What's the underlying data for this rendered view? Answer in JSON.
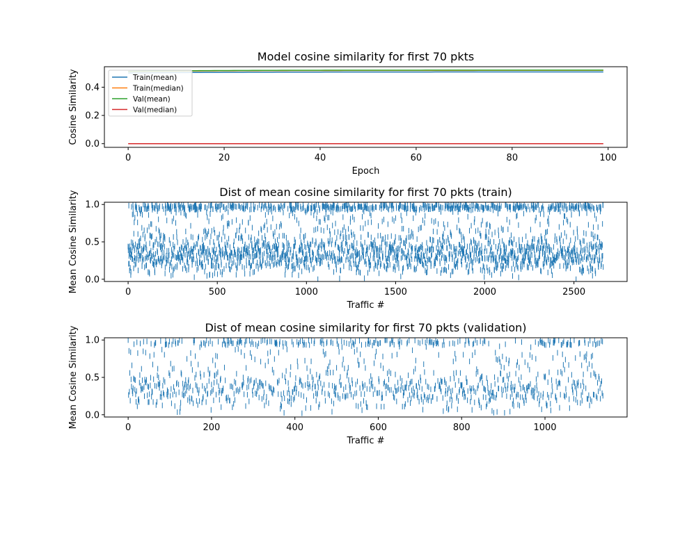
{
  "chart_data": [
    {
      "type": "line",
      "title": "Model cosine similarity for first 70 pkts",
      "xlabel": "Epoch",
      "ylabel": "Cosine Similarity",
      "xlim": [
        -4.95,
        103.95
      ],
      "ylim": [
        -0.026,
        0.545
      ],
      "xticks": [
        0,
        20,
        40,
        60,
        80,
        100
      ],
      "yticks": [
        0.0,
        0.2,
        0.4
      ],
      "ytick_labels": [
        "0.0",
        "0.2",
        "0.4"
      ],
      "legend_position": "upper-left",
      "epochs": {
        "start": 0,
        "end": 99
      },
      "series": [
        {
          "name": "Train(mean)",
          "color": "#1f77b4",
          "start": 0.5,
          "end": 0.508
        },
        {
          "name": "Train(median)",
          "color": "#ff7f0e",
          "start": 0.51,
          "end": 0.519
        },
        {
          "name": "Val(mean)",
          "color": "#2ca02c",
          "start": 0.512,
          "end": 0.521
        },
        {
          "name": "Val(median)",
          "color": "#d62728",
          "start": 0.0,
          "end": 0.0
        }
      ]
    },
    {
      "type": "scatter",
      "marker": "vertical-line",
      "title": "Dist of mean cosine similarity for first 70 pkts (train)",
      "xlabel": "Traffic #",
      "ylabel": "Mean Cosine Similarity",
      "n_points": 2665,
      "xlim": [
        -133,
        2798
      ],
      "ylim": [
        -0.03,
        1.03
      ],
      "xticks": [
        0,
        500,
        1000,
        1500,
        2000,
        2500
      ],
      "yticks": [
        0.0,
        0.5,
        1.0
      ],
      "ytick_labels": [
        "0.0",
        "0.5",
        "1.0"
      ],
      "color": "#1f77b4",
      "distribution": "dense band concentrated between roughly 0.15 and 0.55 with many values near 1.0"
    },
    {
      "type": "scatter",
      "marker": "vertical-line",
      "title": "Dist of mean cosine similarity for first 70 pkts (validation)",
      "xlabel": "Traffic #",
      "ylabel": "Mean Cosine Similarity",
      "n_points": 1140,
      "xlim": [
        -57,
        1197
      ],
      "ylim": [
        -0.03,
        1.03
      ],
      "xticks": [
        0,
        200,
        400,
        600,
        800,
        1000
      ],
      "yticks": [
        0.0,
        0.5,
        1.0
      ],
      "ytick_labels": [
        "0.0",
        "0.5",
        "1.0"
      ],
      "color": "#1f77b4",
      "distribution": "values concentrated between roughly 0.15 and 0.55 with many values near 1.0"
    }
  ]
}
